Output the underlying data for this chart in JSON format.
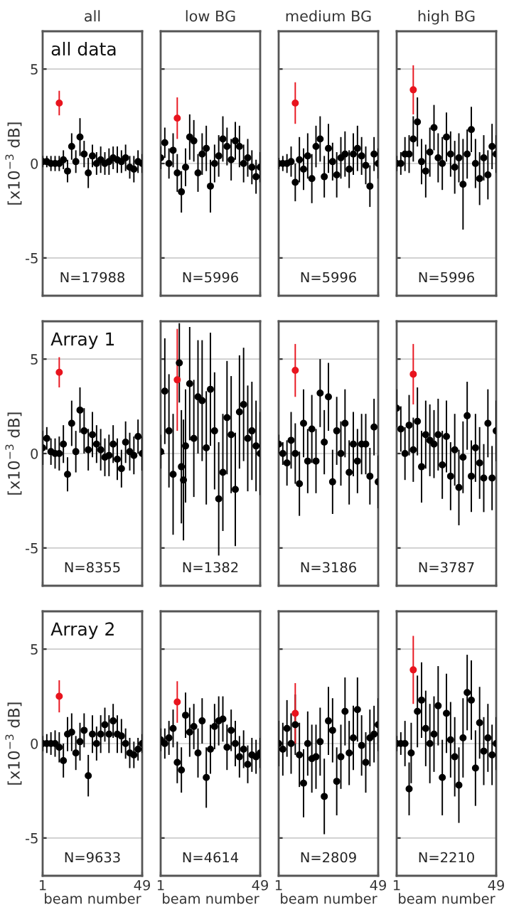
{
  "chart_data": [
    {
      "type": "scatter",
      "title": "all",
      "ylabel": "[x10$^{−3}$ dB]",
      "annotations": [
        "all data",
        "N=17988"
      ],
      "xlim": [
        1,
        49
      ],
      "ylim": [
        -7,
        7
      ],
      "xticks": [
        1,
        49
      ],
      "yticks": [
        -5,
        0,
        5
      ],
      "grid": "y",
      "marker": "circle",
      "tick_labels": "y",
      "series": [
        {
          "color": "#000000",
          "x": [
            1,
            3,
            5,
            7,
            9,
            11,
            13,
            15,
            17,
            19,
            21,
            23,
            25,
            27,
            29,
            31,
            33,
            35,
            37,
            39,
            41,
            43,
            45,
            47,
            49
          ],
          "values": [
            0.1,
            0.1,
            0,
            0,
            0,
            0.2,
            -0.4,
            0.9,
            0.1,
            1.4,
            0.5,
            -0.5,
            0.4,
            0,
            0.2,
            0,
            0.1,
            0.3,
            0.2,
            0.1,
            0.3,
            -0.2,
            -0.3,
            0.1,
            0
          ],
          "errors": [
            0.3,
            0.3,
            0.4,
            0.4,
            0.4,
            0.5,
            0.6,
            0.7,
            0.6,
            1.0,
            0.7,
            0.8,
            0.6,
            0.6,
            0.7,
            0.6,
            0.7,
            0.6,
            0.7,
            0.6,
            0.7,
            0.6,
            0.7,
            0.6,
            0.5
          ]
        },
        {
          "color": "#e8141e",
          "x": [
            9
          ],
          "values": [
            3.2
          ],
          "errors": [
            0.65
          ]
        }
      ]
    },
    {
      "type": "scatter",
      "title": "low BG",
      "annotations": [
        "N=5996"
      ],
      "xlim": [
        1,
        49
      ],
      "ylim": [
        -7,
        7
      ],
      "xticks": [
        1,
        49
      ],
      "yticks": [
        -5,
        0,
        5
      ],
      "grid": "y",
      "marker": "circle",
      "tick_labels": false,
      "series": [
        {
          "color": "#000000",
          "x": [
            1,
            3,
            5,
            7,
            9,
            11,
            13,
            15,
            17,
            19,
            21,
            23,
            25,
            27,
            29,
            31,
            33,
            35,
            37,
            39,
            41,
            43,
            45,
            47,
            49
          ],
          "values": [
            0.3,
            1.1,
            0,
            0.7,
            -0.5,
            -1.5,
            -0.2,
            1.4,
            1.2,
            -0.5,
            0.5,
            0.8,
            -1.2,
            0,
            0.4,
            1.3,
            0.9,
            0.2,
            1.2,
            0.9,
            0,
            0.3,
            -0.2,
            -0.7,
            -0.2
          ],
          "errors": [
            0.6,
            0.8,
            0.8,
            0.9,
            1.0,
            1.1,
            1.0,
            1.2,
            1.1,
            1.0,
            1.1,
            1.2,
            1.4,
            1.0,
            1.1,
            1.2,
            1.0,
            1.1,
            1.0,
            1.1,
            1.0,
            1.0,
            0.9,
            0.9,
            0.8
          ]
        },
        {
          "color": "#e8141e",
          "x": [
            9
          ],
          "values": [
            2.4
          ],
          "errors": [
            1.1
          ]
        }
      ]
    },
    {
      "type": "scatter",
      "title": "medium BG",
      "annotations": [
        "N=5996"
      ],
      "xlim": [
        1,
        49
      ],
      "ylim": [
        -7,
        7
      ],
      "xticks": [
        1,
        49
      ],
      "yticks": [
        -5,
        0,
        5
      ],
      "grid": "y",
      "marker": "circle",
      "tick_labels": false,
      "series": [
        {
          "color": "#000000",
          "x": [
            1,
            3,
            5,
            7,
            9,
            11,
            13,
            15,
            17,
            19,
            21,
            23,
            25,
            27,
            29,
            31,
            33,
            35,
            37,
            39,
            41,
            43,
            45,
            47,
            49
          ],
          "values": [
            0,
            0,
            0,
            0.1,
            -1,
            0.2,
            -0.3,
            0.4,
            -0.8,
            0.9,
            1.3,
            -0.7,
            0.8,
            0.1,
            -0.6,
            0.3,
            0.5,
            -0.3,
            0.5,
            0.8,
            0.4,
            -0.1,
            -1.2,
            0.5,
            0
          ],
          "errors": [
            0.3,
            0.4,
            0.5,
            0.8,
            1.0,
            1.2,
            1.1,
            1.2,
            1.3,
            1.1,
            1.2,
            1.1,
            1.3,
            1.0,
            1.2,
            1.1,
            1.2,
            1.0,
            1.1,
            1.2,
            1.0,
            1.0,
            1.1,
            0.9,
            0.8
          ]
        },
        {
          "color": "#e8141e",
          "x": [
            9
          ],
          "values": [
            3.2
          ],
          "errors": [
            1.1
          ]
        }
      ]
    },
    {
      "type": "scatter",
      "title": "high BG",
      "annotations": [
        "N=5996"
      ],
      "xlim": [
        1,
        49
      ],
      "ylim": [
        -7,
        7
      ],
      "xticks": [
        1,
        49
      ],
      "yticks": [
        -5,
        0,
        5
      ],
      "grid": "y",
      "marker": "circle",
      "tick_labels": false,
      "series": [
        {
          "color": "#000000",
          "x": [
            1,
            3,
            5,
            7,
            9,
            11,
            13,
            15,
            17,
            19,
            21,
            23,
            25,
            27,
            29,
            31,
            33,
            35,
            37,
            39,
            41,
            43,
            45,
            47,
            49
          ],
          "values": [
            0,
            0,
            0.5,
            0.5,
            1.3,
            2.2,
            0.1,
            -0.4,
            0.6,
            1.9,
            0.3,
            0,
            1.4,
            0.5,
            -0.2,
            0.3,
            -1.1,
            0.5,
            1.8,
            0,
            -0.8,
            0.3,
            -0.6,
            0.9,
            0.5
          ],
          "errors": [
            0.4,
            0.6,
            0.9,
            1.0,
            1.2,
            1.3,
            1.2,
            1.4,
            1.3,
            1.2,
            1.3,
            1.4,
            1.3,
            1.2,
            1.4,
            1.3,
            2.4,
            1.3,
            1.2,
            1.3,
            1.4,
            1.2,
            1.3,
            1.2,
            1.0
          ]
        },
        {
          "color": "#e8141e",
          "x": [
            9
          ],
          "values": [
            3.9
          ],
          "errors": [
            1.3
          ]
        }
      ]
    },
    {
      "type": "scatter",
      "ylabel": "[x10$^{−3}$ dB]",
      "annotations": [
        "Array 1",
        "N=8355"
      ],
      "xlim": [
        1,
        49
      ],
      "ylim": [
        -7,
        7
      ],
      "xticks": [
        1,
        49
      ],
      "yticks": [
        -5,
        0,
        5
      ],
      "grid": "y",
      "marker": "circle",
      "tick_labels": "y",
      "series": [
        {
          "color": "#000000",
          "x": [
            1,
            3,
            5,
            7,
            9,
            11,
            13,
            15,
            17,
            19,
            21,
            23,
            25,
            27,
            29,
            31,
            33,
            35,
            37,
            39,
            41,
            43,
            45,
            47,
            49
          ],
          "values": [
            0.3,
            0.8,
            0.1,
            0,
            0,
            0.5,
            -1.1,
            1.6,
            0.1,
            2.3,
            1.2,
            0.2,
            1.0,
            0.5,
            0.2,
            -0.2,
            -0.1,
            0.5,
            -0.3,
            -0.8,
            0.6,
            0.1,
            -0.1,
            0.9,
            0
          ],
          "errors": [
            0.9,
            0.6,
            0.7,
            0.8,
            0.9,
            1.0,
            0.9,
            1.2,
            1.1,
            1.2,
            1.2,
            1.1,
            1.2,
            1.0,
            1.1,
            1.0,
            1.1,
            1.0,
            1.1,
            1.0,
            1.1,
            1.0,
            1.0,
            0.9,
            0.9
          ]
        },
        {
          "color": "#e8141e",
          "x": [
            9
          ],
          "values": [
            4.3
          ],
          "errors": [
            0.8
          ]
        }
      ]
    },
    {
      "type": "scatter",
      "annotations": [
        "N=1382"
      ],
      "xlim": [
        1,
        49
      ],
      "ylim": [
        -7,
        7
      ],
      "xticks": [
        1,
        49
      ],
      "yticks": [
        -5,
        0,
        5
      ],
      "grid": "y",
      "marker": "circle",
      "tick_labels": false,
      "series": [
        {
          "color": "#000000",
          "x": [
            1,
            3,
            5,
            7,
            10,
            11,
            12,
            13,
            15,
            17,
            19,
            21,
            23,
            25,
            27,
            29,
            31,
            33,
            35,
            37,
            39,
            41,
            43,
            45,
            47,
            49
          ],
          "values": [
            0.1,
            3.3,
            1.2,
            -1.1,
            4.8,
            -0.7,
            -1.4,
            0.4,
            3.7,
            0.8,
            3.0,
            2.8,
            0.3,
            3.4,
            1.2,
            -2.4,
            -1.0,
            1.9,
            1.0,
            -1.9,
            2.2,
            2.6,
            0.8,
            1.2,
            0.4,
            0
          ],
          "errors": [
            0.9,
            2.8,
            3.0,
            3.2,
            2.1,
            3.0,
            3.2,
            3.0,
            3.0,
            3.1,
            3.0,
            3.2,
            3.0,
            3.0,
            3.1,
            3.0,
            3.1,
            3.0,
            3.1,
            3.0,
            3.0,
            3.0,
            2.8,
            2.6,
            2.4,
            2.2
          ]
        },
        {
          "color": "#e8141e",
          "x": [
            9
          ],
          "values": [
            3.9
          ],
          "errors": [
            2.7
          ]
        }
      ]
    },
    {
      "type": "scatter",
      "annotations": [
        "N=3186"
      ],
      "xlim": [
        1,
        49
      ],
      "ylim": [
        -7,
        7
      ],
      "xticks": [
        1,
        49
      ],
      "yticks": [
        -5,
        0,
        5
      ],
      "grid": "y",
      "marker": "circle",
      "tick_labels": false,
      "series": [
        {
          "color": "#000000",
          "x": [
            1,
            3,
            5,
            7,
            9,
            11,
            13,
            15,
            17,
            19,
            21,
            23,
            25,
            27,
            29,
            31,
            33,
            35,
            37,
            39,
            41,
            43,
            45,
            47,
            49
          ],
          "values": [
            0.5,
            0,
            -0.5,
            0.7,
            0,
            -1.6,
            1.6,
            -0.4,
            1.3,
            -0.4,
            3.2,
            0.6,
            3.0,
            -1.5,
            1.2,
            0,
            1.6,
            -1.0,
            0.5,
            -0.4,
            0.5,
            0.5,
            -1.2,
            1.4,
            -1.5
          ],
          "errors": [
            0.5,
            0.6,
            1.2,
            1.5,
            1.6,
            1.7,
            1.8,
            1.7,
            1.8,
            1.7,
            1.8,
            1.7,
            1.8,
            1.7,
            1.8,
            1.7,
            1.8,
            1.7,
            1.7,
            1.7,
            1.6,
            1.6,
            1.5,
            1.5,
            1.4
          ]
        },
        {
          "color": "#e8141e",
          "x": [
            9
          ],
          "values": [
            4.4
          ],
          "errors": [
            1.4
          ]
        }
      ]
    },
    {
      "type": "scatter",
      "annotations": [
        "N=3787"
      ],
      "xlim": [
        1,
        49
      ],
      "ylim": [
        -7,
        7
      ],
      "xticks": [
        1,
        49
      ],
      "yticks": [
        -5,
        0,
        5
      ],
      "grid": "y",
      "marker": "circle",
      "tick_labels": false,
      "series": [
        {
          "color": "#000000",
          "x": [
            1,
            3,
            5,
            7,
            9,
            11,
            13,
            15,
            17,
            19,
            21,
            23,
            25,
            27,
            29,
            31,
            33,
            35,
            37,
            39,
            41,
            43,
            45,
            47,
            49
          ],
          "values": [
            2.4,
            1.3,
            0,
            1.5,
            0.2,
            1.7,
            -0.7,
            1.0,
            0.7,
            0.5,
            1.0,
            -0.6,
            0.9,
            -1.2,
            0.2,
            -1.8,
            -0.2,
            2.0,
            -1.2,
            0.3,
            -0.5,
            -1.3,
            1.6,
            -1.3,
            1.2
          ],
          "errors": [
            1.0,
            1.2,
            1.4,
            1.6,
            1.7,
            1.8,
            1.9,
            1.8,
            1.9,
            1.8,
            1.9,
            1.8,
            1.9,
            1.8,
            1.9,
            2.0,
            1.9,
            1.8,
            1.9,
            1.8,
            1.9,
            1.8,
            1.8,
            1.7,
            1.6
          ]
        },
        {
          "color": "#e8141e",
          "x": [
            9
          ],
          "values": [
            4.2
          ],
          "errors": [
            1.6
          ]
        }
      ]
    },
    {
      "type": "scatter",
      "ylabel": "[x10$^{−3}$ dB]",
      "xlabel": "beam number",
      "annotations": [
        "Array 2",
        "N=9633"
      ],
      "xlim": [
        1,
        49
      ],
      "ylim": [
        -7,
        7
      ],
      "xticks": [
        1,
        49
      ],
      "yticks": [
        -5,
        0,
        5
      ],
      "grid": "y",
      "marker": "circle",
      "series": [
        {
          "color": "#000000",
          "x": [
            1,
            3,
            5,
            7,
            9,
            11,
            13,
            15,
            17,
            19,
            21,
            23,
            25,
            27,
            29,
            31,
            33,
            35,
            37,
            39,
            41,
            43,
            45,
            47,
            49
          ],
          "values": [
            0,
            0,
            0,
            0,
            -0.2,
            -0.9,
            0.5,
            0.6,
            -0.5,
            0.1,
            0.7,
            -1.7,
            0.5,
            0,
            0.5,
            1.0,
            0.5,
            1.2,
            0.5,
            0.4,
            0,
            -0.5,
            -0.6,
            -0.3,
            0
          ],
          "errors": [
            0.4,
            0.5,
            0.6,
            0.7,
            0.8,
            0.9,
            0.9,
            1.0,
            0.9,
            1.0,
            0.9,
            1.1,
            1.0,
            0.9,
            1.0,
            0.9,
            1.0,
            0.9,
            1.0,
            0.9,
            0.8,
            0.8,
            0.7,
            0.6,
            0.5
          ]
        },
        {
          "color": "#e8141e",
          "x": [
            9
          ],
          "values": [
            2.5
          ],
          "errors": [
            0.85
          ]
        }
      ]
    },
    {
      "type": "scatter",
      "xlabel": "beam number",
      "annotations": [
        "N=4614"
      ],
      "xlim": [
        1,
        49
      ],
      "ylim": [
        -7,
        7
      ],
      "xticks": [
        1,
        49
      ],
      "yticks": [
        -5,
        0,
        5
      ],
      "grid": "y",
      "marker": "circle",
      "tick_labels": "x",
      "series": [
        {
          "color": "#000000",
          "x": [
            1,
            3,
            5,
            7,
            9,
            11,
            13,
            15,
            17,
            19,
            21,
            23,
            25,
            27,
            29,
            31,
            33,
            35,
            37,
            39,
            41,
            43,
            45,
            47,
            49
          ],
          "values": [
            0.2,
            0,
            0.3,
            0.8,
            -1.0,
            -1.4,
            1.5,
            0.6,
            0.9,
            -0.5,
            1.2,
            -1.8,
            -0.3,
            0.9,
            1.2,
            1.3,
            -0.2,
            0.7,
            0,
            -0.7,
            -0.3,
            -1.1,
            -0.6,
            -0.7,
            -0.5
          ],
          "errors": [
            0.6,
            0.8,
            0.9,
            1.0,
            1.1,
            1.2,
            1.2,
            1.3,
            1.2,
            1.3,
            1.2,
            1.6,
            1.3,
            1.2,
            1.3,
            1.2,
            1.2,
            1.1,
            1.2,
            1.1,
            1.0,
            1.0,
            0.9,
            0.9,
            0.8
          ]
        },
        {
          "color": "#e8141e",
          "x": [
            9
          ],
          "values": [
            2.2
          ],
          "errors": [
            1.1
          ]
        }
      ]
    },
    {
      "type": "scatter",
      "xlabel": "beam number",
      "annotations": [
        "N=2809"
      ],
      "xlim": [
        1,
        49
      ],
      "ylim": [
        -7,
        7
      ],
      "xticks": [
        1,
        49
      ],
      "yticks": [
        -5,
        0,
        5
      ],
      "grid": "y",
      "marker": "circle",
      "tick_labels": "x",
      "series": [
        {
          "color": "#000000",
          "x": [
            1,
            3,
            5,
            7,
            9,
            11,
            13,
            15,
            17,
            19,
            21,
            23,
            25,
            27,
            29,
            31,
            33,
            35,
            37,
            39,
            41,
            43,
            45,
            47,
            49
          ],
          "values": [
            0,
            -0.3,
            0.8,
            0,
            1.0,
            -0.6,
            -2.1,
            0,
            -0.8,
            -0.7,
            0.1,
            -2.8,
            1.2,
            0.7,
            -2.0,
            -0.7,
            1.7,
            -0.5,
            0.3,
            1.8,
            -0.1,
            -1.0,
            0.3,
            0.5,
            1.0
          ],
          "errors": [
            1.2,
            1.4,
            1.5,
            1.6,
            1.6,
            1.7,
            1.8,
            1.7,
            1.8,
            1.7,
            1.8,
            2.0,
            1.8,
            1.7,
            1.8,
            1.7,
            1.8,
            1.7,
            1.7,
            1.7,
            1.6,
            1.6,
            1.5,
            1.5,
            1.4
          ]
        },
        {
          "color": "#e8141e",
          "x": [
            9
          ],
          "values": [
            1.6
          ],
          "errors": [
            1.6
          ]
        }
      ]
    },
    {
      "type": "scatter",
      "xlabel": "beam number",
      "annotations": [
        "N=2210"
      ],
      "xlim": [
        1,
        49
      ],
      "ylim": [
        -7,
        7
      ],
      "xticks": [
        1,
        49
      ],
      "yticks": [
        -5,
        0,
        5
      ],
      "grid": "y",
      "marker": "circle",
      "tick_labels": "x",
      "series": [
        {
          "color": "#000000",
          "x": [
            1,
            3,
            5,
            7,
            8,
            11,
            13,
            15,
            17,
            19,
            21,
            23,
            25,
            27,
            29,
            31,
            33,
            35,
            37,
            39,
            41,
            43,
            45,
            47,
            49
          ],
          "values": [
            0,
            0,
            0,
            -2.4,
            -0.5,
            1.7,
            2.3,
            0.8,
            0,
            0.5,
            2.0,
            -1.8,
            1.6,
            0.2,
            -0.7,
            -2.2,
            0.3,
            2.7,
            2.3,
            -1.3,
            1.1,
            -0.4,
            0.3,
            -0.6,
            0
          ],
          "errors": [
            0.4,
            0.6,
            1.2,
            1.4,
            1.6,
            1.9,
            2.0,
            2.0,
            2.1,
            2.0,
            2.1,
            2.0,
            2.1,
            2.0,
            2.1,
            2.0,
            2.1,
            2.0,
            2.1,
            2.0,
            1.9,
            1.8,
            1.8,
            1.6,
            1.4
          ]
        },
        {
          "color": "#e8141e",
          "x": [
            9
          ],
          "values": [
            3.9
          ],
          "errors": [
            1.8
          ]
        }
      ]
    }
  ]
}
